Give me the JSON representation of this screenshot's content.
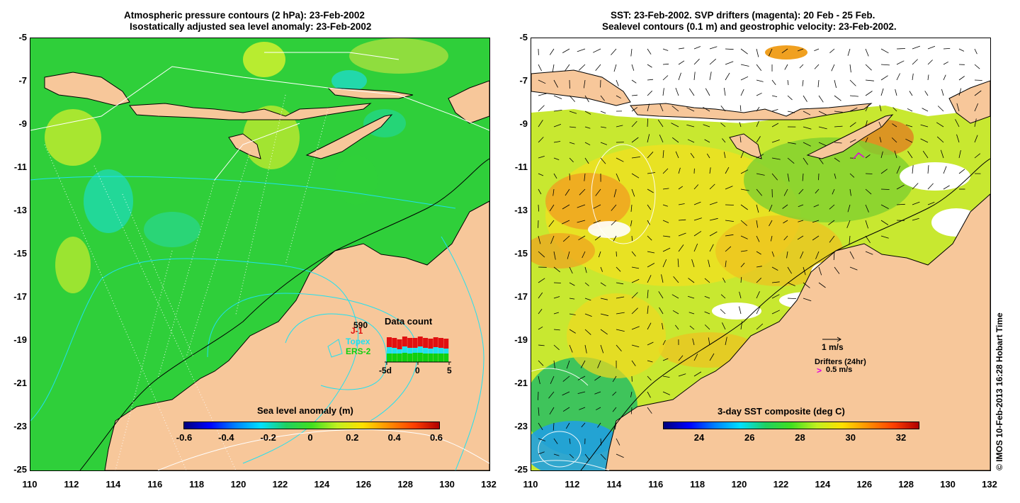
{
  "left_panel": {
    "title_line1": "Atmospheric pressure contours (2 hPa): 23-Feb-2002",
    "title_line2": "Isostatically adjusted sea level anomaly: 23-Feb-2002",
    "y_ticks": [
      "-5",
      "-7",
      "-9",
      "-11",
      "-13",
      "-15",
      "-17",
      "-19",
      "-21",
      "-23",
      "-25"
    ],
    "x_ticks": [
      "110",
      "112",
      "114",
      "116",
      "118",
      "120",
      "122",
      "124",
      "126",
      "128",
      "130",
      "132"
    ],
    "colorbar_title": "Sea level anomaly (m)",
    "colorbar_ticks": [
      "-0.6",
      "-0.4",
      "-0.2",
      "0",
      "0.2",
      "0.4",
      "0.6"
    ],
    "data_count": {
      "title": "Data count",
      "total": "590",
      "satellites": [
        {
          "name": "J-1",
          "color": "#e01010"
        },
        {
          "name": "Topex",
          "color": "#20e0f0"
        },
        {
          "name": "ERS-2",
          "color": "#10d010"
        }
      ],
      "axis_labels": [
        "-5d",
        "0",
        "5"
      ]
    }
  },
  "right_panel": {
    "title_line1": "SST: 23-Feb-2002. SVP drifters (magenta): 20 Feb - 25 Feb.",
    "title_line2": "Sealevel contours (0.1 m) and geostrophic velocity: 23-Feb-2002.",
    "y_ticks": [
      "-5",
      "-7",
      "-9",
      "-11",
      "-13",
      "-15",
      "-17",
      "-19",
      "-21",
      "-23",
      "-25"
    ],
    "x_ticks": [
      "110",
      "112",
      "114",
      "116",
      "118",
      "120",
      "122",
      "124",
      "126",
      "128",
      "130",
      "132"
    ],
    "colorbar_title": "3-day SST composite (deg C)",
    "colorbar_ticks": [
      "24",
      "26",
      "28",
      "30",
      "32"
    ],
    "velocity_scale_label": "1 m/s",
    "drifters_label": "Drifters (24hr)",
    "drifter_scale_label": "0.5 m/s"
  },
  "credit": "© IMOS 10-Feb-2013 16:28 Hobart Time",
  "colors": {
    "land": "#f7c79a",
    "ocean_green": "#2fcf3a",
    "missing_sst": "#ffffff",
    "drifter_magenta": "#e000e0"
  }
}
